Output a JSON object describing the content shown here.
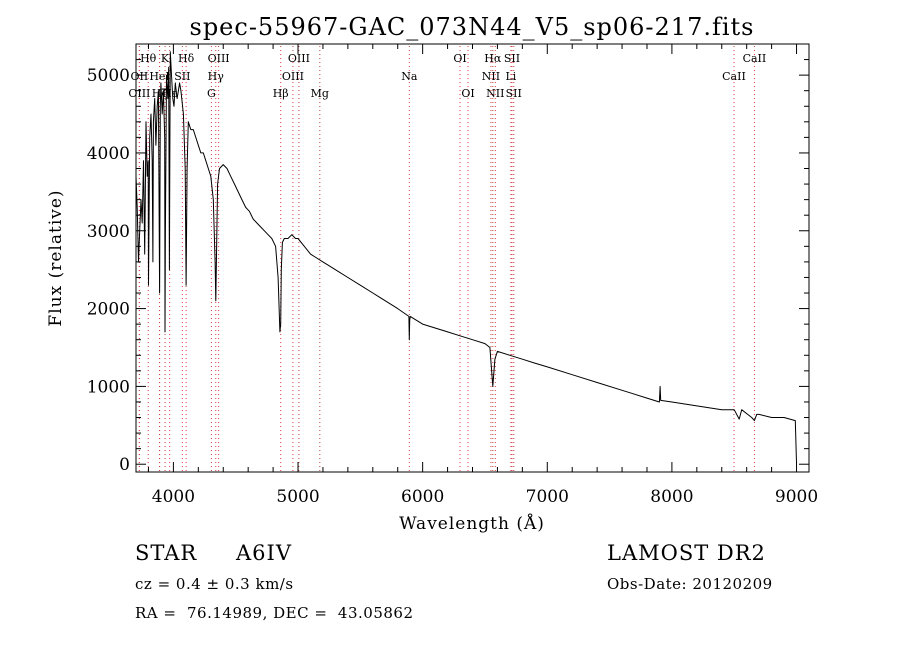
{
  "chart_data": {
    "type": "line",
    "title": "spec-55967-GAC_073N44_V5_sp06-217.fits",
    "xlabel": "Wavelength (Å)",
    "ylabel": "Flux (relative)",
    "xlim": [
      3700,
      9100
    ],
    "ylim": [
      -100,
      5400
    ],
    "xticks": [
      4000,
      5000,
      6000,
      7000,
      8000,
      9000
    ],
    "yticks": [
      0,
      1000,
      2000,
      3000,
      4000,
      5000
    ],
    "grid": false,
    "series": [
      {
        "x": [
          3700,
          3710,
          3720,
          3730,
          3740,
          3750,
          3760,
          3770,
          3780,
          3790,
          3798,
          3800,
          3810,
          3820,
          3830,
          3836,
          3840,
          3850,
          3860,
          3870,
          3880,
          3889,
          3895,
          3900,
          3910,
          3920,
          3930,
          3933,
          3936,
          3945,
          3955,
          3962,
          3968,
          3971,
          3975,
          3985,
          3995,
          4005,
          4015,
          4030,
          4040,
          4050,
          4060,
          4080,
          4095,
          4102,
          4110,
          4120,
          4140,
          4160,
          4180,
          4200,
          4220,
          4240,
          4260,
          4280,
          4300,
          4320,
          4335,
          4340,
          4345,
          4355,
          4370,
          4400,
          4430,
          4460,
          4490,
          4520,
          4550,
          4580,
          4610,
          4640,
          4670,
          4700,
          4730,
          4760,
          4790,
          4820,
          4840,
          4855,
          4861,
          4866,
          4875,
          4890,
          4920,
          4950,
          4980,
          5000,
          5050,
          5100,
          5150,
          5200,
          5250,
          5300,
          5400,
          5500,
          5600,
          5700,
          5800,
          5890,
          5893,
          5896,
          5900,
          6000,
          6100,
          6200,
          6300,
          6400,
          6500,
          6540,
          6563,
          6580,
          6600,
          6700,
          6800,
          6900,
          7000,
          7200,
          7400,
          7600,
          7800,
          7900,
          7905,
          7910,
          8000,
          8200,
          8400,
          8500,
          8540,
          8560,
          8600,
          8640,
          8662,
          8680,
          8700,
          8800,
          8900,
          8990,
          9000
        ],
        "y": [
          3700,
          3300,
          2600,
          3000,
          3400,
          3100,
          3900,
          2700,
          4400,
          3700,
          3900,
          2300,
          4200,
          4500,
          3900,
          2600,
          4400,
          4700,
          4100,
          4600,
          4800,
          2200,
          4600,
          4900,
          4500,
          4800,
          4200,
          1700,
          3000,
          5000,
          4700,
          5100,
          2500,
          3900,
          5300,
          5000,
          4700,
          4600,
          4900,
          4700,
          4800,
          4900,
          4800,
          4500,
          3800,
          2300,
          3800,
          4400,
          4300,
          4300,
          4200,
          4100,
          4000,
          4000,
          3900,
          3800,
          3700,
          3400,
          2600,
          2100,
          2600,
          3600,
          3800,
          3850,
          3800,
          3700,
          3600,
          3500,
          3400,
          3300,
          3250,
          3150,
          3100,
          3050,
          3000,
          2950,
          2900,
          2800,
          2400,
          1700,
          1800,
          2500,
          2850,
          2900,
          2900,
          2950,
          2900,
          2900,
          2800,
          2700,
          2650,
          2600,
          2550,
          2500,
          2400,
          2300,
          2200,
          2100,
          2000,
          1900,
          1600,
          1850,
          1900,
          1800,
          1750,
          1700,
          1650,
          1600,
          1550,
          1500,
          1000,
          1350,
          1450,
          1400,
          1350,
          1300,
          1250,
          1150,
          1050,
          950,
          850,
          800,
          1000,
          820,
          800,
          750,
          700,
          700,
          580,
          700,
          650,
          600,
          560,
          640,
          640,
          600,
          600,
          560,
          20
        ]
      }
    ],
    "spectral_lines": [
      {
        "label": "Hθ",
        "wavelength": 3798,
        "row": 1
      },
      {
        "label": "OII",
        "wavelength": 3727,
        "row": 2
      },
      {
        "label": "OIII",
        "wavelength": 3727,
        "row": 3
      },
      {
        "label": "Hζ",
        "wavelength": 3889,
        "row": 3
      },
      {
        "label": "HeI",
        "wavelength": 3889,
        "row": 2
      },
      {
        "label": "K",
        "wavelength": 3933,
        "row": 1
      },
      {
        "label": "Hε",
        "wavelength": 3970,
        "row": 3
      },
      {
        "label": "SII",
        "wavelength": 4072,
        "row": 2
      },
      {
        "label": "Hδ",
        "wavelength": 4102,
        "row": 1
      },
      {
        "label": "OIII",
        "wavelength": 4363,
        "row": 1
      },
      {
        "label": "Hγ",
        "wavelength": 4340,
        "row": 2
      },
      {
        "label": "G",
        "wavelength": 4305,
        "row": 3
      },
      {
        "label": "Hβ",
        "wavelength": 4861,
        "row": 3
      },
      {
        "label": "OIII",
        "wavelength": 5007,
        "row": 1
      },
      {
        "label": "OIII",
        "wavelength": 4959,
        "row": 2
      },
      {
        "label": "Mg",
        "wavelength": 5175,
        "row": 3
      },
      {
        "label": "Na",
        "wavelength": 5893,
        "row": 2
      },
      {
        "label": "OI",
        "wavelength": 6300,
        "row": 1
      },
      {
        "label": "OI",
        "wavelength": 6364,
        "row": 3
      },
      {
        "label": "Hα",
        "wavelength": 6563,
        "row": 1
      },
      {
        "label": "NII",
        "wavelength": 6548,
        "row": 2
      },
      {
        "label": "NII",
        "wavelength": 6583,
        "row": 3
      },
      {
        "label": "SII",
        "wavelength": 6717,
        "row": 1
      },
      {
        "label": "Li",
        "wavelength": 6708,
        "row": 2
      },
      {
        "label": "SII",
        "wavelength": 6731,
        "row": 3
      },
      {
        "label": "CaII",
        "wavelength": 8662,
        "row": 1
      },
      {
        "label": "CaII",
        "wavelength": 8498,
        "row": 2
      }
    ],
    "line_color": "#000000",
    "marker_line_color": "#d04040"
  },
  "info": {
    "object_class": "STAR",
    "subclass": "A6IV",
    "redshift": "cz = 0.4 ± 0.3 km/s",
    "coordinates": "RA =  76.14989, DEC =  43.05862",
    "survey": "LAMOST DR2",
    "obs_date": "Obs-Date: 20120209"
  }
}
